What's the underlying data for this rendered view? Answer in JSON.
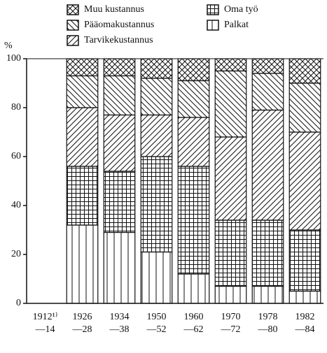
{
  "chart_data": {
    "type": "stacked_bar",
    "y_label": "%",
    "categories": [
      [
        "1912¹⁾",
        "—14"
      ],
      [
        "1926",
        "—28"
      ],
      [
        "1934",
        "—38"
      ],
      [
        "1950",
        "—52"
      ],
      [
        "1960",
        "—62"
      ],
      [
        "1970",
        "—72"
      ],
      [
        "1978",
        "—80"
      ],
      [
        "1982",
        "—84"
      ]
    ],
    "series": [
      {
        "name": "Palkat",
        "color": "#111111",
        "hatch": "vertical",
        "values": [
          null,
          32,
          29,
          21,
          12,
          7,
          7,
          5
        ]
      },
      {
        "name": "Oma työ",
        "color": "#111111",
        "hatch": "grid",
        "values": [
          null,
          24,
          25,
          39,
          44,
          27,
          27,
          25
        ]
      },
      {
        "name": "Tarvikekustannus",
        "color": "#111111",
        "hatch": "diagonal",
        "values": [
          null,
          24,
          23,
          17,
          20,
          34,
          45,
          40
        ]
      },
      {
        "name": "Pääomakustannus",
        "color": "#111111",
        "hatch": "backdiagonal",
        "values": [
          null,
          13,
          16,
          15,
          15,
          27,
          15,
          20
        ]
      },
      {
        "name": "Muu kustannus",
        "color": "#111111",
        "hatch": "crossdiagonal",
        "values": [
          null,
          7,
          7,
          8,
          9,
          5,
          6,
          10
        ]
      }
    ],
    "ylim": [
      0,
      100
    ],
    "yticks": [
      0,
      20,
      40,
      60,
      80,
      100
    ]
  }
}
